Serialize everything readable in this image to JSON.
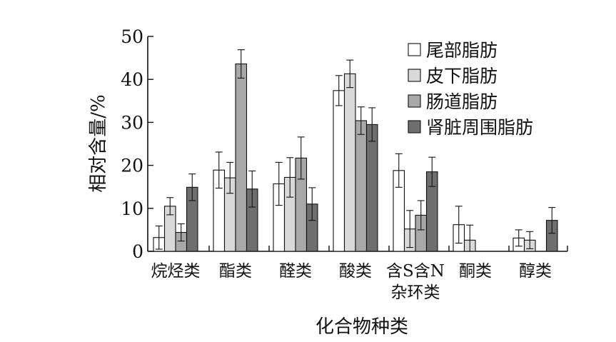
{
  "chart_data": {
    "type": "bar",
    "ylabel": "相对含量/%",
    "xlabel": "化合物种类",
    "ylim": [
      0,
      50
    ],
    "yticks": [
      "0",
      "10",
      "20",
      "30",
      "40",
      "50"
    ],
    "legend_position": "top-right",
    "categories": [
      [
        "烷烃类"
      ],
      [
        "酯类"
      ],
      [
        "醛类"
      ],
      [
        "酸类"
      ],
      [
        "含S含N",
        "杂环类"
      ],
      [
        "酮类"
      ],
      [
        "醇类"
      ]
    ],
    "series": [
      {
        "name": "尾部脂肪",
        "color": "#ffffff",
        "values": [
          3.2,
          18.9,
          15.7,
          37.4,
          18.8,
          6.2,
          3.1
        ],
        "errors": [
          2.7,
          4.2,
          5.0,
          3.5,
          3.9,
          4.3,
          1.9
        ]
      },
      {
        "name": "皮下脂肪",
        "color": "#d9d9d9",
        "values": [
          10.5,
          17.1,
          17.2,
          41.3,
          5.2,
          2.6,
          2.6
        ],
        "errors": [
          2.0,
          3.6,
          4.6,
          3.2,
          4.3,
          3.5,
          2.0
        ]
      },
      {
        "name": "肠道脂肪",
        "color": "#a8a8a8",
        "values": [
          4.4,
          43.6,
          21.7,
          30.4,
          8.4,
          null,
          null
        ],
        "errors": [
          2.0,
          3.3,
          4.9,
          3.2,
          3.4,
          null,
          null
        ]
      },
      {
        "name": "肾脏周围脂肪",
        "color": "#6e6e6e",
        "values": [
          14.9,
          14.5,
          11.0,
          29.5,
          18.5,
          null,
          7.2
        ],
        "errors": [
          3.1,
          4.2,
          3.8,
          3.9,
          3.4,
          null,
          3.0
        ]
      }
    ]
  }
}
